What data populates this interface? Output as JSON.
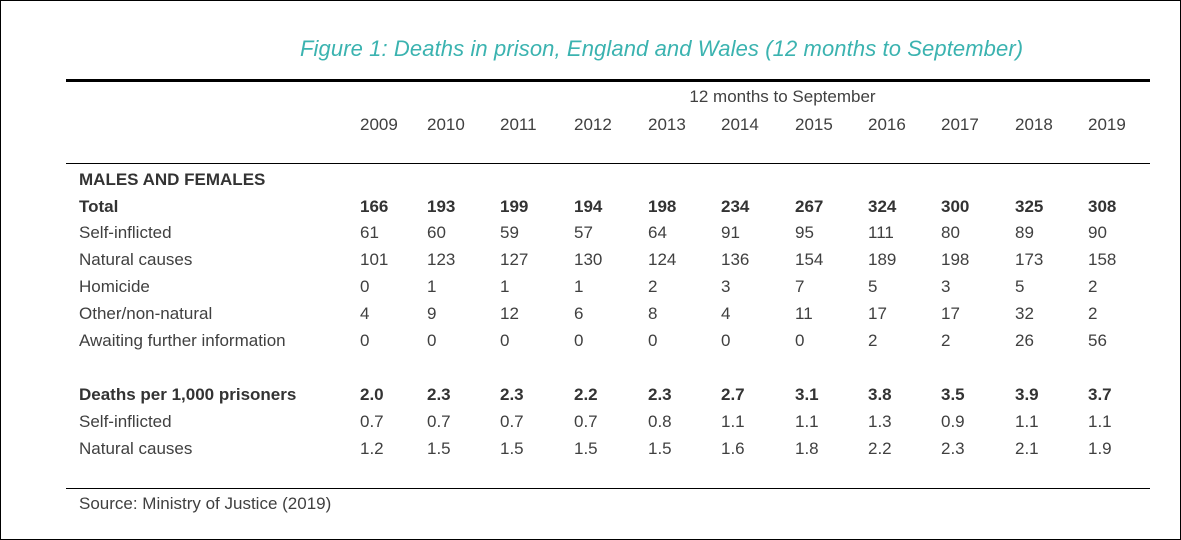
{
  "colors": {
    "title": "#3bb3b0",
    "text": "#404040",
    "rules": "#000000"
  },
  "chart_data": {
    "type": "table",
    "title": "Figure 1: Deaths in prison, England and Wales (12 months to September)",
    "column_group_label": "12 months to September",
    "columns": [
      "2009",
      "2010",
      "2011",
      "2012",
      "2013",
      "2014",
      "2015",
      "2016",
      "2017",
      "2018",
      "2019"
    ],
    "section_heading": "MALES AND FEMALES",
    "rows": [
      {
        "label": "Total",
        "bold": true,
        "values": [
          "166",
          "193",
          "199",
          "194",
          "198",
          "234",
          "267",
          "324",
          "300",
          "325",
          "308"
        ]
      },
      {
        "label": "Self-inflicted",
        "bold": false,
        "values": [
          "61",
          "60",
          "59",
          "57",
          "64",
          "91",
          "95",
          "111",
          "80",
          "89",
          "90"
        ]
      },
      {
        "label": "Natural causes",
        "bold": false,
        "values": [
          "101",
          "123",
          "127",
          "130",
          "124",
          "136",
          "154",
          "189",
          "198",
          "173",
          "158"
        ]
      },
      {
        "label": "Homicide",
        "bold": false,
        "values": [
          "0",
          "1",
          "1",
          "1",
          "2",
          "3",
          "7",
          "5",
          "3",
          "5",
          "2"
        ]
      },
      {
        "label": "Other/non-natural",
        "bold": false,
        "values": [
          "4",
          "9",
          "12",
          "6",
          "8",
          "4",
          "11",
          "17",
          "17",
          "32",
          "2"
        ]
      },
      {
        "label": "Awaiting further information",
        "bold": false,
        "values": [
          "0",
          "0",
          "0",
          "0",
          "0",
          "0",
          "0",
          "2",
          "2",
          "26",
          "56"
        ]
      },
      {
        "label": "Deaths per 1,000 prisoners",
        "bold": true,
        "values": [
          "2.0",
          "2.3",
          "2.3",
          "2.2",
          "2.3",
          "2.7",
          "3.1",
          "3.8",
          "3.5",
          "3.9",
          "3.7"
        ]
      },
      {
        "label": "Self-inflicted",
        "bold": false,
        "values": [
          "0.7",
          "0.7",
          "0.7",
          "0.7",
          "0.8",
          "1.1",
          "1.1",
          "1.3",
          "0.9",
          "1.1",
          "1.1"
        ]
      },
      {
        "label": "Natural causes",
        "bold": false,
        "values": [
          "1.2",
          "1.5",
          "1.5",
          "1.5",
          "1.5",
          "1.6",
          "1.8",
          "2.2",
          "2.3",
          "2.1",
          "1.9"
        ]
      }
    ],
    "source": "Source: Ministry of Justice (2019)"
  }
}
